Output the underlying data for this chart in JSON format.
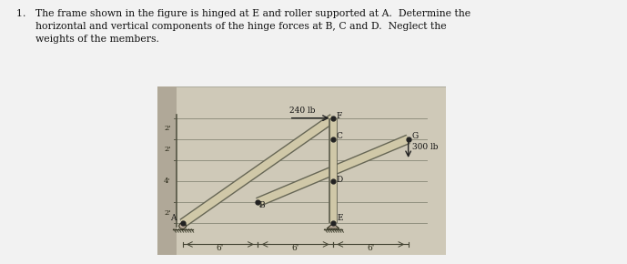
{
  "fig_bg": "#f2f2f2",
  "diagram_bg": "#cfc9b8",
  "wall_bg": "#b0a898",
  "text_color": "#111111",
  "member_color_light": "#c8c0a8",
  "member_color_dark": "#666655",
  "line_color": "#555544",
  "dim_color": "#333333",
  "load_240": "240 lb",
  "load_300": "300 lb",
  "dim_labels": [
    "6'",
    "6'",
    "6'"
  ],
  "ht_labels": [
    [
      "2'",
      0,
      2
    ],
    [
      "4'",
      2,
      6
    ],
    [
      "2'",
      6,
      8
    ],
    [
      "2'",
      8,
      10
    ]
  ],
  "points": {
    "A": [
      0,
      0
    ],
    "B": [
      6,
      2
    ],
    "C": [
      12,
      8
    ],
    "D": [
      12,
      4
    ],
    "E": [
      12,
      0
    ],
    "F": [
      12,
      10
    ],
    "G": [
      18,
      8
    ]
  }
}
